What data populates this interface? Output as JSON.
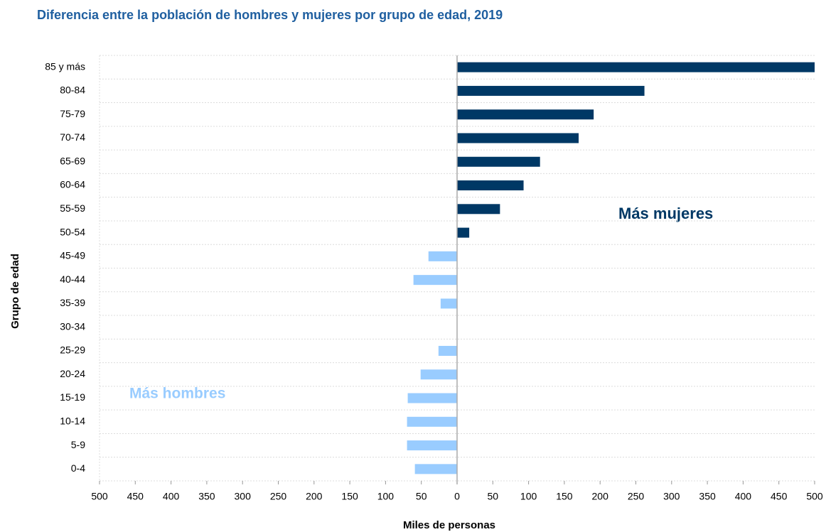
{
  "chart_data": {
    "type": "diverging-bar",
    "title": "Diferencia entre la población de hombres y mujeres por grupo de edad, 2019",
    "x_label": "Miles de personas",
    "y_label": "Grupo de edad",
    "annotations": [
      "Más mujeres",
      "Más hombres"
    ],
    "categories": [
      "85 y más",
      "80-84",
      "75-79",
      "70-74",
      "65-69",
      "60-64",
      "55-59",
      "50-54",
      "45-49",
      "40-44",
      "35-39",
      "30-34",
      "25-29",
      "20-24",
      "15-19",
      "10-14",
      "5-9",
      "0-4"
    ],
    "values": [
      500,
      262,
      191,
      170,
      116,
      93,
      60,
      17,
      -40,
      -61,
      -23,
      0,
      -26,
      -51,
      -69,
      -70,
      -70,
      -59
    ],
    "positive_color": "#003865",
    "negative_color": "#99ccff",
    "xlim": [
      -500,
      500
    ],
    "xticks": [
      {
        "value": -500,
        "label": "500"
      },
      {
        "value": -450,
        "label": "450"
      },
      {
        "value": -400,
        "label": "400"
      },
      {
        "value": -350,
        "label": "350"
      },
      {
        "value": -300,
        "label": "300"
      },
      {
        "value": -250,
        "label": "250"
      },
      {
        "value": -200,
        "label": "200"
      },
      {
        "value": -150,
        "label": "150"
      },
      {
        "value": -100,
        "label": "100"
      },
      {
        "value": -50,
        "label": "50"
      },
      0,
      50,
      100,
      150,
      200,
      250,
      300,
      350,
      400,
      450,
      500
    ]
  }
}
